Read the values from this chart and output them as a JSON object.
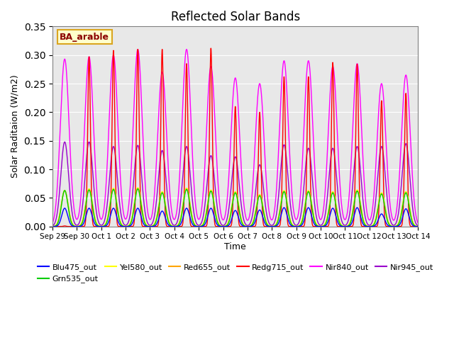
{
  "title": "Reflected Solar Bands",
  "xlabel": "Time",
  "ylabel": "Solar Raditaion (W/m2)",
  "annotation": "BA_arable",
  "annotation_color": "#8B0000",
  "annotation_bg": "#FFFFCC",
  "annotation_border": "#DAA520",
  "ylim": [
    0,
    0.35
  ],
  "yticks": [
    0.0,
    0.05,
    0.1,
    0.15,
    0.2,
    0.25,
    0.3,
    0.35
  ],
  "background_color": "#E8E8E8",
  "series_colors": {
    "Blu475_out": "#0000FF",
    "Grn535_out": "#00CC00",
    "Yel580_out": "#FFFF00",
    "Red655_out": "#FFA500",
    "Redg715_out": "#FF0000",
    "Nir840_out": "#FF00FF",
    "Nir945_out": "#9900CC"
  },
  "figsize": [
    6.4,
    4.8
  ],
  "dpi": 100,
  "tick_labels": [
    "Sep 29",
    "Sep 30",
    "Oct 1",
    "Oct 2",
    "Oct 3",
    "Oct 4",
    "Oct 5",
    "Oct 6",
    "Oct 7",
    "Oct 8",
    "Oct 9",
    "Oct 10",
    "Oct 11",
    "Oct 12",
    "Oct 13",
    "Oct 14"
  ],
  "nir840_peaks": [
    0.293,
    0.297,
    0.3,
    0.31,
    0.27,
    0.31,
    0.28,
    0.26,
    0.25,
    0.29,
    0.29,
    0.28,
    0.285,
    0.25,
    0.265
  ],
  "nir945_peaks": [
    0.148,
    0.148,
    0.14,
    0.142,
    0.133,
    0.14,
    0.124,
    0.122,
    0.108,
    0.143,
    0.137,
    0.137,
    0.14,
    0.14,
    0.145
  ],
  "redg715_peaks": [
    0.001,
    0.297,
    0.308,
    0.31,
    0.31,
    0.285,
    0.312,
    0.21,
    0.2,
    0.262,
    0.262,
    0.287,
    0.284,
    0.22,
    0.233
  ],
  "red655_peaks": [
    0.063,
    0.065,
    0.066,
    0.067,
    0.06,
    0.067,
    0.063,
    0.06,
    0.055,
    0.062,
    0.062,
    0.06,
    0.063,
    0.058,
    0.06
  ],
  "yel580_peaks": [
    0.063,
    0.066,
    0.067,
    0.068,
    0.061,
    0.067,
    0.064,
    0.061,
    0.056,
    0.063,
    0.063,
    0.061,
    0.064,
    0.059,
    0.061
  ],
  "grn535_peaks": [
    0.063,
    0.064,
    0.065,
    0.066,
    0.059,
    0.065,
    0.062,
    0.059,
    0.054,
    0.061,
    0.061,
    0.059,
    0.062,
    0.057,
    0.059
  ],
  "blu475_peaks": [
    0.032,
    0.032,
    0.032,
    0.032,
    0.027,
    0.032,
    0.032,
    0.028,
    0.029,
    0.033,
    0.033,
    0.032,
    0.033,
    0.022,
    0.031
  ],
  "sigma_nir840": 0.18,
  "sigma_nir945": 0.16,
  "sigma_redg715": 0.055,
  "sigma_red655": 0.14,
  "sigma_yel580": 0.14,
  "sigma_grn535": 0.13,
  "sigma_blu475": 0.12
}
